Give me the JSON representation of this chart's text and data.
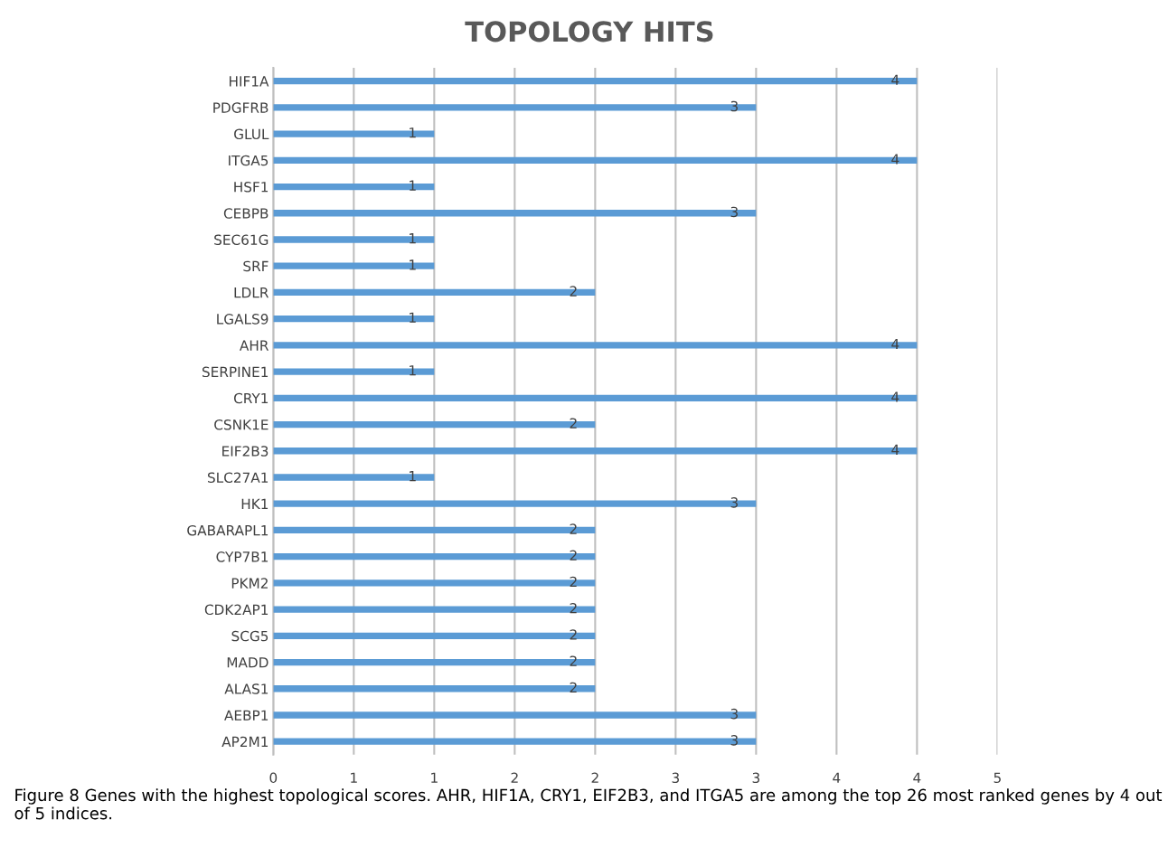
{
  "chart_data": {
    "type": "bar",
    "orientation": "horizontal",
    "title": "TOPOLOGY HITS",
    "categories": [
      "HIF1A",
      "PDGFRB",
      "GLUL",
      "ITGA5",
      "HSF1",
      "CEBPB",
      "SEC61G",
      "SRF",
      "LDLR",
      "LGALS9",
      "AHR",
      "SERPINE1",
      "CRY1",
      "CSNK1E",
      "EIF2B3",
      "SLC27A1",
      "HK1",
      "GABARAPL1",
      "CYP7B1",
      "PKM2",
      "CDK2AP1",
      "SCG5",
      "MADD",
      "ALAS1",
      "AEBP1",
      "AP2M1"
    ],
    "values": [
      4,
      3,
      1,
      4,
      1,
      3,
      1,
      1,
      2,
      1,
      4,
      1,
      4,
      2,
      4,
      1,
      3,
      2,
      2,
      2,
      2,
      2,
      2,
      2,
      3,
      3
    ],
    "color": "#5b9bd5",
    "xlim": [
      0,
      4.5
    ],
    "xticks": [
      0,
      {
        "value": 0.5,
        "label": "1"
      },
      1,
      {
        "value": 1.5,
        "label": "2"
      },
      2,
      {
        "value": 2.5,
        "label": "3"
      },
      3,
      {
        "value": 3.5,
        "label": "4"
      },
      4,
      {
        "value": 4.5,
        "label": "5"
      }
    ],
    "grid": "x",
    "data_labels": true,
    "annotations": [
      "Figure 8 Genes with the highest topological scores. AHR, HIF1A, CRY1, EIF2B3, and ITGA5 are among the top 26 most ranked genes by 4 out of 5 indices."
    ]
  }
}
